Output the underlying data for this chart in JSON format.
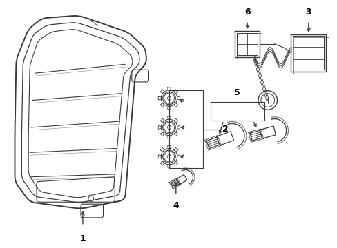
{
  "background_color": "#ffffff",
  "line_color": "#3a3a3a",
  "line_width": 1.0,
  "label_color": "#000000",
  "label_fontsize": 9,
  "fig_width": 4.89,
  "fig_height": 3.6,
  "dpi": 100
}
